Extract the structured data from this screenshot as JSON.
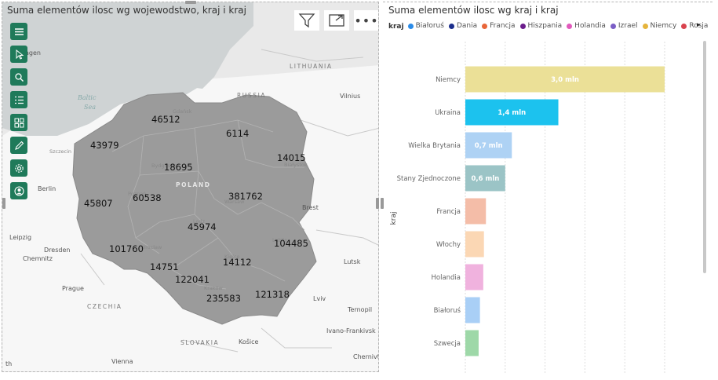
{
  "map_visual": {
    "title": "Suma elementów ilosc wg wojewodstwo, kraj i kraj",
    "country_label": "POLAND",
    "sea_label_1": "Baltic",
    "sea_label_2": "Sea",
    "places": [
      {
        "name": "LITHUANIA",
        "style": "caps"
      },
      {
        "name": "RUSSIA",
        "style": "caps"
      },
      {
        "name": "Vilnius",
        "style": "place"
      },
      {
        "name": "Berlin",
        "style": "place"
      },
      {
        "name": "Leipzig",
        "style": "place"
      },
      {
        "name": "Dresden",
        "style": "place"
      },
      {
        "name": "Chemnitz",
        "style": "place"
      },
      {
        "name": "Prague",
        "style": "place"
      },
      {
        "name": "CZECHIA",
        "style": "caps"
      },
      {
        "name": "SLOVAKIA",
        "style": "caps"
      },
      {
        "name": "Vienna",
        "style": "place"
      },
      {
        "name": "Lviv",
        "style": "place"
      },
      {
        "name": "Lutsk",
        "style": "place"
      },
      {
        "name": "Ternopil",
        "style": "place"
      },
      {
        "name": "Brest",
        "style": "place"
      },
      {
        "name": "Ivano-Frankivsk",
        "style": "place"
      },
      {
        "name": "Košice",
        "style": "place"
      },
      {
        "name": "Chernivtsi",
        "style": "place"
      },
      {
        "name": "agen",
        "style": "place"
      },
      {
        "name": "Szczecin",
        "style": "dim"
      },
      {
        "name": "Gdańsk",
        "style": "dim"
      },
      {
        "name": "Warsaw",
        "style": "dim"
      },
      {
        "name": "Lodz",
        "style": "dim"
      },
      {
        "name": "Kraków",
        "style": "dim"
      },
      {
        "name": "Białystok",
        "style": "dim"
      },
      {
        "name": "Bydgoszcz",
        "style": "dim"
      },
      {
        "name": "Wrocław",
        "style": "dim"
      },
      {
        "name": "Lublin",
        "style": "dim"
      },
      {
        "name": "Kielce",
        "style": "dim"
      },
      {
        "name": "Poznań",
        "style": "dim"
      },
      {
        "name": "th",
        "style": "place"
      }
    ],
    "region_values": [
      "46512",
      "6114",
      "43979",
      "18695",
      "14015",
      "60538",
      "381762",
      "45807",
      "45974",
      "104485",
      "101760",
      "14751",
      "14112",
      "122041",
      "235583",
      "121318"
    ],
    "toolbar_icons": [
      "menu-icon",
      "cursor-icon",
      "search-icon",
      "list-icon",
      "grid-icon",
      "pen-icon",
      "settings-icon",
      "user-icon"
    ],
    "header_icons": [
      "filter-icon",
      "focus-mode-icon",
      "more-options-icon"
    ],
    "more_glyph": "•••",
    "map_colors": {
      "land": "#ffffff",
      "water": "#cfd3d4",
      "poland": "#9b9b9b",
      "background": "#e9e9e9"
    }
  },
  "bar_visual": {
    "title": "Suma elementów ilosc wg kraj i kraj",
    "legend_title": "kraj",
    "legend_next_glyph": "▸",
    "legend": [
      {
        "name": "Białoruś",
        "color": "#2b8be8"
      },
      {
        "name": "Dania",
        "color": "#1b2e8c"
      },
      {
        "name": "Francja",
        "color": "#e8663a"
      },
      {
        "name": "Hiszpania",
        "color": "#6b1d8c"
      },
      {
        "name": "Holandia",
        "color": "#e15abc"
      },
      {
        "name": "Izrael",
        "color": "#7b5ec6"
      },
      {
        "name": "Niemcy",
        "color": "#e5b43c"
      },
      {
        "name": "Rosja",
        "color": "#d9434e"
      }
    ],
    "y_axis_title": "kraj"
  },
  "chart_data": {
    "type": "bar",
    "orientation": "horizontal",
    "categories": [
      "Niemcy",
      "Ukraina",
      "Wielka Brytania",
      "Stany Zjednoczone",
      "Francja",
      "Włochy",
      "Holandia",
      "Białoruś",
      "Szwecja"
    ],
    "values": [
      3.0,
      1.4,
      0.7,
      0.6,
      0.31,
      0.28,
      0.27,
      0.22,
      0.2
    ],
    "data_labels": [
      "3,0 mln",
      "1,4 mln",
      "0,7 mln",
      "0,6 mln",
      "",
      "",
      "",
      "",
      ""
    ],
    "colors": [
      "#ebe097",
      "#1cc2ee",
      "#aed2f4",
      "#9bc4c6",
      "#f4bda8",
      "#fbd7b4",
      "#f0b2de",
      "#a9cff6",
      "#9ed8a8"
    ],
    "unit": "mln",
    "ylabel": "kraj",
    "xlim": [
      0,
      3.0
    ],
    "gridlines": true
  }
}
